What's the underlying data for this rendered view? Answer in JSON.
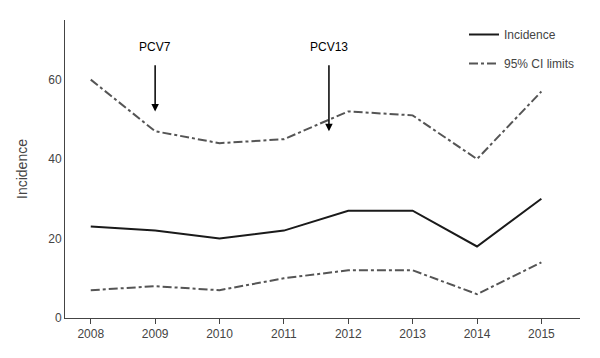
{
  "chart_data": {
    "type": "line",
    "y_label": "Incidence",
    "x": [
      2008,
      2009,
      2010,
      2011,
      2012,
      2013,
      2014,
      2015
    ],
    "series": [
      {
        "name": "Incidence",
        "color": "#1a1a1a",
        "line_style": "solid",
        "values": [
          23,
          22,
          20,
          22,
          27,
          27,
          18,
          30
        ]
      },
      {
        "name": "95% CI limits",
        "color": "#555555",
        "line_style": "dashdot",
        "values": [
          60,
          47,
          44,
          45,
          52,
          51,
          40,
          57
        ]
      },
      {
        "name": "95% CI limits",
        "color": "#555555",
        "line_style": "dashdot",
        "values": [
          7,
          8,
          7,
          10,
          12,
          12,
          6,
          14
        ]
      }
    ],
    "annotations": [
      {
        "text": "PCV7",
        "x": 2009,
        "y": 66,
        "arrow_tip": 52,
        "arrow_base": 64
      },
      {
        "text": "PCV13",
        "x": 2011.7,
        "y": 66,
        "arrow_tip": 47,
        "arrow_base": 64
      }
    ],
    "xlim": [
      2007.6,
      2015.6
    ],
    "xticks": [
      2008,
      2009,
      2010,
      2011,
      2012,
      2013,
      2014,
      2015
    ],
    "ylim": [
      0,
      75
    ],
    "yticks": [
      0,
      20,
      40,
      60
    ],
    "grid": false,
    "legend": "upper right"
  }
}
